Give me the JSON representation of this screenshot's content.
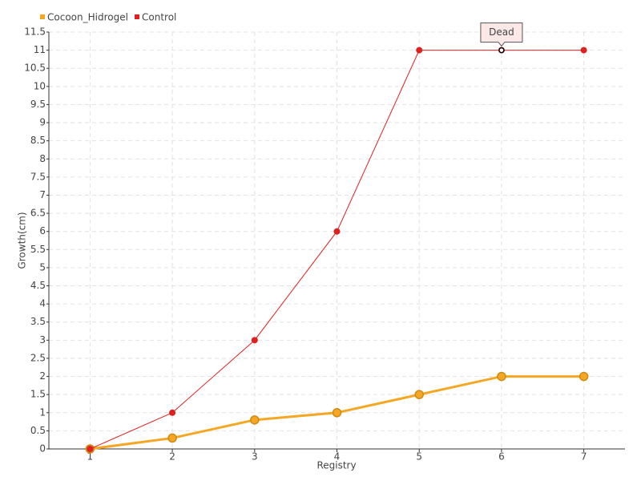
{
  "chart_data": {
    "type": "line",
    "x_label": "Registry",
    "y_label": "Growth(cm)",
    "categories": [
      "1",
      "2",
      "3",
      "4",
      "5",
      "6",
      "7"
    ],
    "series": [
      {
        "name": "Cocoon_Hidrogel",
        "color": "#f5a623",
        "values": [
          0,
          0.3,
          0.8,
          1,
          1.5,
          2,
          2
        ]
      },
      {
        "name": "Control",
        "color": "#e0201f",
        "values": [
          0,
          1,
          3,
          6,
          11,
          11,
          11
        ]
      }
    ],
    "annotation": "Dead",
    "ylim": [
      0,
      11.5
    ],
    "yticks": [
      0,
      0.5,
      1,
      1.5,
      2,
      2.5,
      3,
      3.5,
      4,
      4.5,
      5,
      5.5,
      6,
      6.5,
      7,
      7.5,
      8,
      8.5,
      9,
      9.5,
      10,
      10.5,
      11,
      11.5
    ],
    "grid": true
  }
}
